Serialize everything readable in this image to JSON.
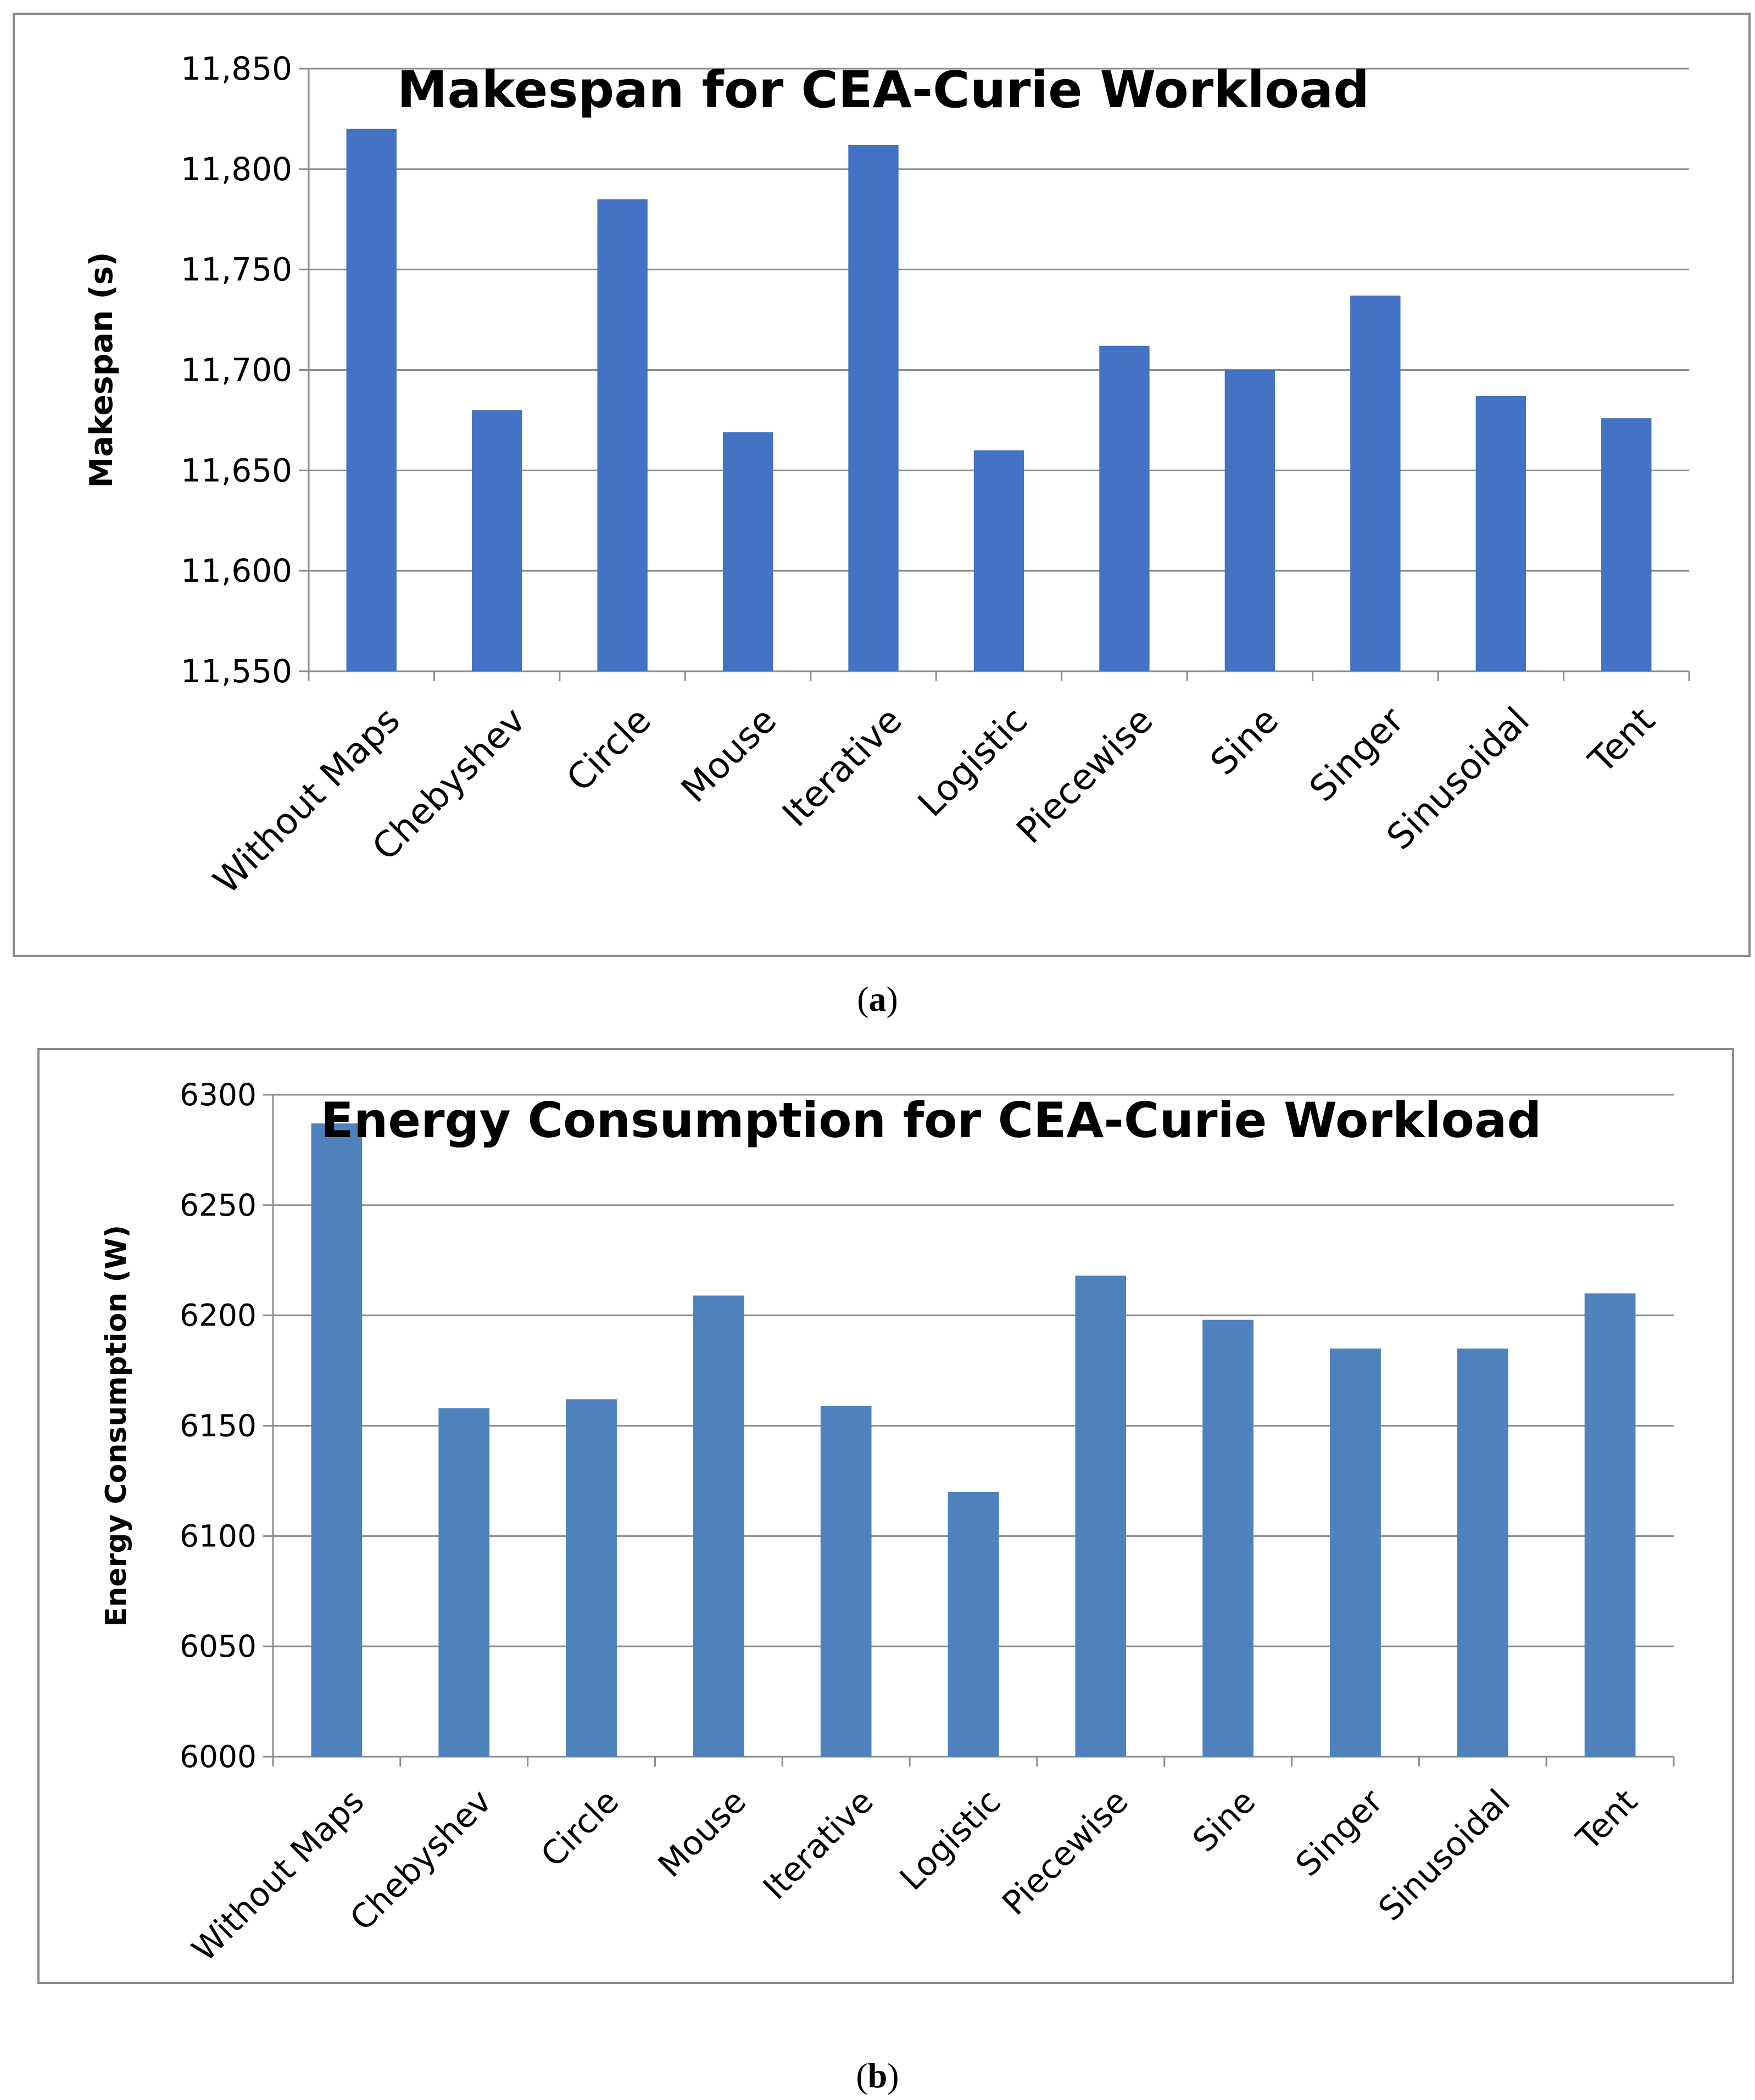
{
  "chart_data": [
    {
      "type": "bar",
      "title": "Makespan for CEA-Curie Workload",
      "xlabel": "",
      "ylabel": "Makespan (s)",
      "categories": [
        "Without Maps",
        "Chebyshev",
        "Circle",
        "Mouse",
        "Iterative",
        "Logistic",
        "Piecewise",
        "Sine",
        "Singer",
        "Sinusoidal",
        "Tent"
      ],
      "values": [
        11820,
        11680,
        11785,
        11669,
        11812,
        11660,
        11712,
        11700,
        11737,
        11687,
        11676
      ],
      "ylim": [
        11550,
        11850
      ],
      "yticks": [
        11550,
        11600,
        11650,
        11700,
        11750,
        11800,
        11850
      ],
      "ytick_labels": [
        "11,550",
        "11,600",
        "11,650",
        "11,700",
        "11,750",
        "11,800",
        "11,850"
      ],
      "grid": true,
      "bar_color": "#4472C4",
      "caption_letter": "a"
    },
    {
      "type": "bar",
      "title": "Energy Consumption for CEA-Curie Workload",
      "xlabel": "",
      "ylabel": "Energy Consumption (W)",
      "categories": [
        "Without Maps",
        "Chebyshev",
        "Circle",
        "Mouse",
        "Iterative",
        "Logistic",
        "Piecewise",
        "Sine",
        "Singer",
        "Sinusoidal",
        "Tent"
      ],
      "values": [
        6287,
        6158,
        6162,
        6209,
        6159,
        6120,
        6218,
        6198,
        6185,
        6185,
        6210
      ],
      "ylim": [
        6000,
        6300
      ],
      "yticks": [
        6000,
        6050,
        6100,
        6150,
        6200,
        6250,
        6300
      ],
      "ytick_labels": [
        "6000",
        "6050",
        "6100",
        "6150",
        "6200",
        "6250",
        "6300"
      ],
      "grid": true,
      "bar_color": "#4F81BD",
      "caption_letter": "b"
    }
  ]
}
